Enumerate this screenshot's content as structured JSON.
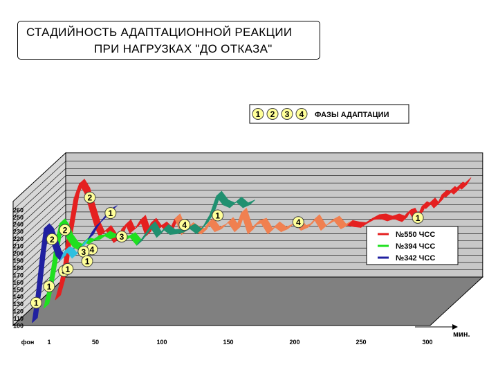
{
  "title": {
    "line1": "СТАДИЙНОСТЬ АДАПТАЦИОННОЙ РЕАКЦИИ",
    "line2": "ПРИ НАГРУЗКАХ \"ДО ОТКАЗА\""
  },
  "chart_data": {
    "type": "line",
    "style": "3d-ribbon",
    "ylim": [
      100,
      260
    ],
    "yticks": [
      "100",
      "110",
      "120",
      "130",
      "140",
      "150",
      "160",
      "170",
      "180",
      "190",
      "200",
      "210",
      "220",
      "230",
      "240",
      "250",
      "260"
    ],
    "xlim": [
      0,
      300
    ],
    "xticks": [
      {
        "label": "фон",
        "value": -5
      },
      {
        "label": "1",
        "value": 1
      },
      {
        "label": "50",
        "value": 50
      },
      {
        "label": "100",
        "value": 100
      },
      {
        "label": "150",
        "value": 150
      },
      {
        "label": "200",
        "value": 200
      },
      {
        "label": "250",
        "value": 250
      },
      {
        "label": "300",
        "value": 300
      }
    ],
    "xlabel": "мин.",
    "grid": true,
    "legend_position": "right",
    "phase_legend": {
      "numbers": [
        "1",
        "2",
        "3",
        "4"
      ],
      "label": "ФАЗЫ АДАПТАЦИИ"
    },
    "series": [
      {
        "name": "№550 ЧСС",
        "color": "#e52020",
        "colors": [
          "#e52020",
          "#f08050",
          "#e52020"
        ],
        "depth": 2,
        "x": [
          0,
          3,
          6,
          8,
          11,
          14,
          18,
          22,
          26,
          30,
          33,
          36,
          38,
          41,
          44,
          47,
          50,
          53,
          56,
          60,
          64,
          68,
          72,
          76,
          80,
          85,
          90,
          95,
          100,
          105,
          110,
          115,
          120,
          125,
          130,
          135,
          140,
          145,
          150,
          155,
          160,
          165,
          170,
          175,
          180,
          185,
          190,
          195,
          200,
          205,
          210,
          215,
          220,
          225,
          230,
          235,
          240,
          245,
          250,
          255,
          258,
          261,
          264,
          267,
          270,
          273,
          276,
          279,
          282,
          285,
          288,
          291,
          294,
          297,
          300,
          303,
          306,
          309
        ],
        "y": [
          102,
          122,
          148,
          178,
          210,
          242,
          262,
          250,
          226,
          202,
          190,
          194,
          198,
          190,
          181,
          185,
          200,
          206,
          194,
          200,
          212,
          190,
          208,
          198,
          203,
          194,
          214,
          192,
          202,
          196,
          193,
          208,
          196,
          200,
          209,
          196,
          222,
          193,
          205,
          208,
          193,
          203,
          196,
          200,
          208,
          198,
          202,
          213,
          198,
          206,
          211,
          200,
          205,
          203,
          202,
          208,
          213,
          214,
          211,
          214,
          212,
          210,
          220,
          222,
          212,
          218,
          231,
          228,
          236,
          229,
          235,
          247,
          244,
          252,
          248,
          258,
          255,
          264
        ]
      },
      {
        "name": "№394 ЧСС",
        "color": "#20e020",
        "colors": [
          "#20e020",
          "#209070"
        ],
        "depth": 1,
        "x": [
          0,
          3,
          6,
          9,
          12,
          15,
          18,
          22,
          26,
          30,
          34,
          38,
          42,
          46,
          50,
          55,
          60,
          65,
          70,
          75,
          80,
          85,
          90,
          95,
          100,
          105,
          110,
          115,
          120,
          125,
          130,
          135,
          140,
          145,
          150,
          155
        ],
        "y": [
          105,
          130,
          162,
          198,
          222,
          214,
          200,
          190,
          186,
          196,
          194,
          199,
          200,
          205,
          201,
          204,
          198,
          203,
          192,
          204,
          218,
          203,
          214,
          207,
          208,
          210,
          215,
          208,
          218,
          234,
          260,
          248,
          244,
          252,
          244,
          248
        ]
      },
      {
        "name": "№342 ЧСС",
        "color": "#2020a0",
        "colors": [
          "#2020a0",
          "#30c0e0",
          "#2020a0"
        ],
        "depth": 0,
        "x": [
          0,
          3,
          6,
          9,
          12,
          15,
          18,
          21,
          24,
          27,
          30,
          33,
          36,
          39,
          42,
          45,
          48,
          51,
          54,
          57,
          60
        ],
        "y": [
          100,
          140,
          190,
          230,
          224,
          208,
          192,
          186,
          198,
          196,
          189,
          195,
          202,
          210,
          215,
          225,
          233,
          238,
          245,
          252,
          255
        ]
      }
    ],
    "phase_markers": [
      {
        "label": "1",
        "series": 2,
        "x": 1,
        "y": 124
      },
      {
        "label": "2",
        "series": 2,
        "x": 13,
        "y": 212
      },
      {
        "label": "3",
        "series": 2,
        "x": 22,
        "y": 168
      },
      {
        "label": "4",
        "series": 2,
        "x": 43,
        "y": 198
      },
      {
        "label": "1",
        "series": 2,
        "x": 57,
        "y": 248
      },
      {
        "label": "1",
        "series": 1,
        "x": 2,
        "y": 132
      },
      {
        "label": "1",
        "series": 1,
        "x": 16,
        "y": 156
      },
      {
        "label": "2",
        "series": 1,
        "x": 14,
        "y": 210
      },
      {
        "label": "3",
        "series": 1,
        "x": 28,
        "y": 180
      },
      {
        "label": "4",
        "series": 1,
        "x": 104,
        "y": 217
      },
      {
        "label": "1",
        "series": 1,
        "x": 129,
        "y": 230
      },
      {
        "label": "1",
        "series": 0,
        "x": 22,
        "y": 152
      },
      {
        "label": "2",
        "series": 0,
        "x": 24,
        "y": 240
      },
      {
        "label": "3",
        "series": 0,
        "x": 48,
        "y": 186
      },
      {
        "label": "4",
        "series": 0,
        "x": 181,
        "y": 206
      },
      {
        "label": "1",
        "series": 0,
        "x": 271,
        "y": 212
      }
    ]
  }
}
